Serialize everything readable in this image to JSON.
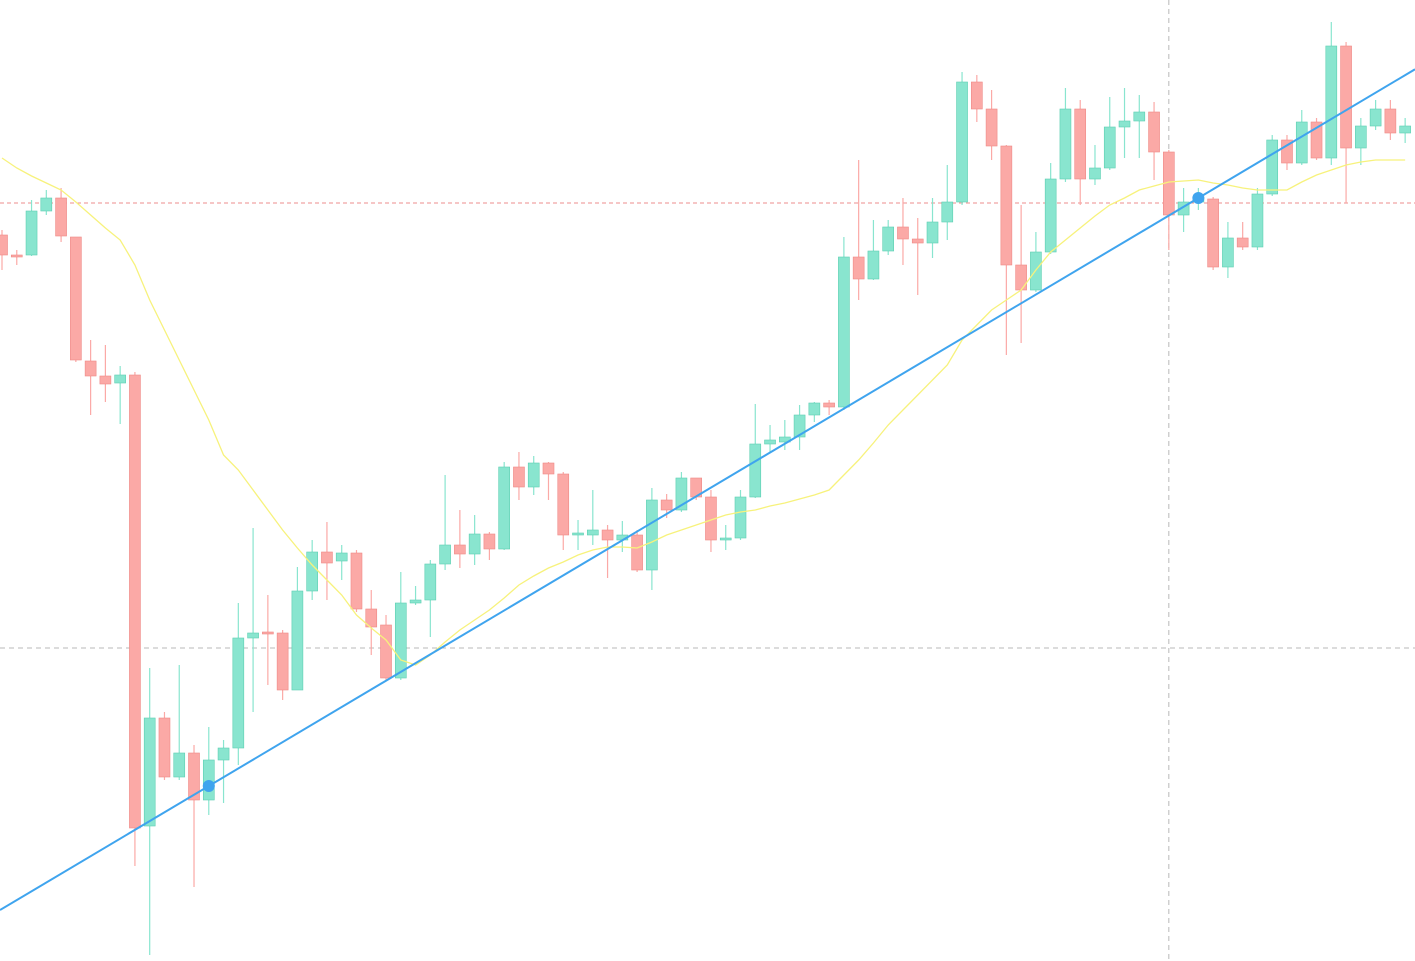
{
  "chart_data": {
    "type": "candlestick",
    "ylim": [
      0,
      961
    ],
    "up_color": "#89e5cf",
    "down_color": "#fba9a6",
    "open": [
      726,
      706,
      706,
      750,
      763,
      724,
      600,
      585,
      578,
      586,
      135,
      243,
      184,
      208,
      161,
      201,
      213,
      323,
      329,
      328,
      271,
      370,
      409,
      400,
      408,
      352,
      336,
      283,
      358,
      361,
      397,
      416,
      407,
      427,
      412,
      494,
      474,
      498,
      487,
      426,
      426,
      431,
      421,
      426,
      391,
      461,
      451,
      483,
      464,
      421,
      423,
      464,
      517,
      519,
      524,
      546,
      558,
      554,
      704,
      682,
      710,
      734,
      722,
      718,
      739,
      759,
      879,
      852,
      815,
      696,
      671,
      709,
      782,
      852,
      782,
      793,
      834,
      840,
      849,
      809,
      746,
      759,
      762,
      694,
      723,
      714,
      767,
      821,
      798,
      839,
      803,
      915,
      813,
      835,
      852,
      828
    ],
    "high": [
      731,
      711,
      761,
      771,
      773,
      724,
      621,
      616,
      595,
      589,
      293,
      249,
      296,
      216,
      234,
      221,
      358,
      433,
      366,
      331,
      394,
      421,
      439,
      416,
      411,
      371,
      346,
      389,
      375,
      401,
      486,
      451,
      446,
      429,
      499,
      509,
      505,
      499,
      489,
      441,
      471,
      436,
      440,
      431,
      473,
      467,
      489,
      483,
      471,
      436,
      471,
      557,
      536,
      541,
      556,
      559,
      561,
      724,
      801,
      741,
      741,
      763,
      743,
      763,
      796,
      889,
      886,
      871,
      816,
      756,
      729,
      798,
      873,
      861,
      816,
      864,
      873,
      866,
      859,
      811,
      773,
      773,
      764,
      739,
      739,
      773,
      826,
      826,
      851,
      843,
      939,
      919,
      843,
      861,
      861,
      843
    ],
    "low": [
      691,
      696,
      705,
      746,
      719,
      599,
      546,
      559,
      537,
      95,
      6,
      181,
      181,
      74,
      146,
      158,
      196,
      249,
      276,
      261,
      271,
      361,
      361,
      381,
      349,
      306,
      281,
      281,
      356,
      324,
      391,
      393,
      396,
      401,
      411,
      461,
      466,
      461,
      411,
      411,
      416,
      383,
      409,
      389,
      371,
      443,
      449,
      461,
      409,
      411,
      421,
      463,
      509,
      511,
      511,
      539,
      546,
      551,
      661,
      681,
      706,
      696,
      666,
      703,
      721,
      756,
      839,
      801,
      606,
      618,
      669,
      707,
      779,
      756,
      776,
      791,
      803,
      803,
      781,
      711,
      729,
      751,
      691,
      683,
      711,
      711,
      765,
      791,
      796,
      801,
      796,
      758,
      796,
      831,
      821,
      818
    ],
    "close": [
      706,
      704,
      750,
      763,
      725,
      601,
      585,
      577,
      586,
      133,
      243,
      184,
      208,
      161,
      201,
      213,
      323,
      328,
      327,
      271,
      370,
      409,
      398,
      408,
      352,
      334,
      283,
      358,
      361,
      397,
      416,
      407,
      427,
      412,
      494,
      474,
      498,
      487,
      426,
      428,
      431,
      421,
      426,
      391,
      461,
      451,
      483,
      464,
      421,
      423,
      464,
      517,
      521,
      524,
      546,
      558,
      554,
      704,
      682,
      710,
      734,
      722,
      718,
      739,
      759,
      879,
      852,
      815,
      696,
      671,
      709,
      782,
      852,
      782,
      793,
      834,
      840,
      849,
      809,
      746,
      759,
      763,
      694,
      723,
      714,
      767,
      821,
      798,
      839,
      803,
      915,
      813,
      835,
      852,
      828,
      835
    ],
    "moving_average": {
      "color": "#f7f27c",
      "values": [
        803,
        793,
        785,
        778,
        771,
        759,
        746,
        733,
        721,
        696,
        661,
        631,
        601,
        571,
        541,
        506,
        491,
        471,
        451,
        431,
        413,
        396,
        381,
        366,
        346,
        333,
        321,
        301,
        296,
        306,
        319,
        331,
        341,
        351,
        363,
        376,
        385,
        393,
        399,
        406,
        411,
        414,
        414,
        413,
        419,
        426,
        431,
        436,
        441,
        446,
        449,
        451,
        455,
        458,
        462,
        466,
        471,
        486,
        501,
        518,
        536,
        551,
        566,
        581,
        596,
        621,
        636,
        651,
        661,
        671,
        691,
        709,
        721,
        733,
        745,
        756,
        763,
        771,
        775,
        779,
        780,
        781,
        778,
        776,
        773,
        771,
        771,
        771,
        779,
        786,
        791,
        796,
        799,
        801,
        801,
        801
      ]
    },
    "trendline": {
      "color": "#3fa4ee",
      "x": [
        14,
        81
      ],
      "values": [
        175,
        763
      ]
    },
    "price_line": {
      "value": 758,
      "color": "#ee8c8c"
    },
    "crosshair": {
      "x": 79,
      "value": 313,
      "color": "#b8b8b8"
    }
  }
}
